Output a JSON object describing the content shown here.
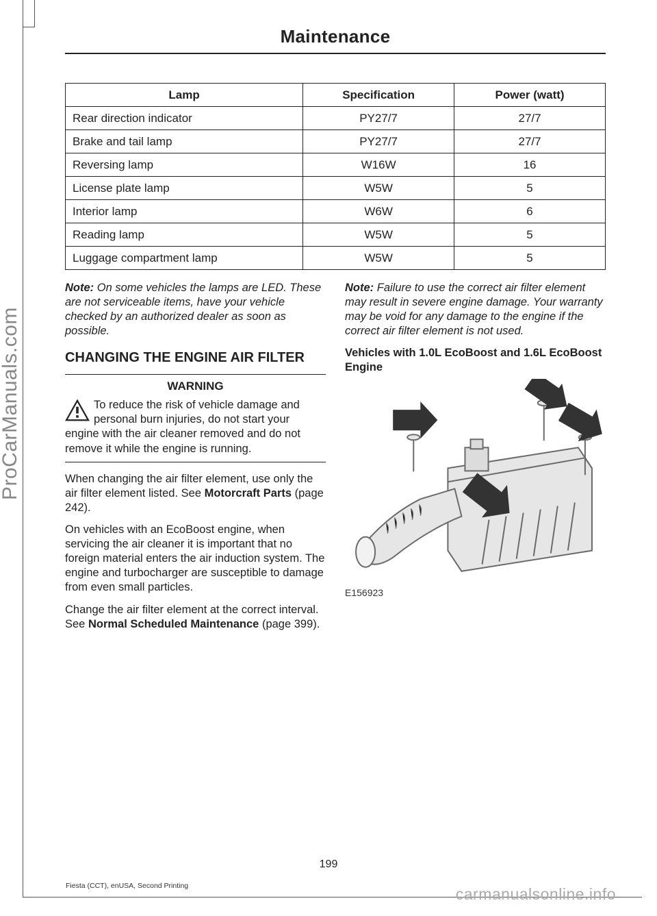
{
  "chapter_title": "Maintenance",
  "table": {
    "columns": [
      "Lamp",
      "Specification",
      "Power (watt)"
    ],
    "rows": [
      [
        "Rear direction indicator",
        "PY27/7",
        "27/7"
      ],
      [
        "Brake and tail lamp",
        "PY27/7",
        "27/7"
      ],
      [
        "Reversing lamp",
        "W16W",
        "16"
      ],
      [
        "License plate lamp",
        "W5W",
        "5"
      ],
      [
        "Interior lamp",
        "W6W",
        "6"
      ],
      [
        "Reading lamp",
        "W5W",
        "5"
      ],
      [
        "Luggage compartment lamp",
        "W5W",
        "5"
      ]
    ]
  },
  "left_col": {
    "note_label": "Note:",
    "note_text": " On some vehicles the lamps are LED. These are not serviceable items, have your vehicle checked by an authorized dealer as soon as possible.",
    "heading": "CHANGING THE ENGINE AIR FILTER",
    "warning_title": "WARNING",
    "warning_body": "To reduce the risk of vehicle damage and personal burn injuries, do not start your engine with the air cleaner removed and do not remove it while the engine is running.",
    "p1a": "When changing the air filter element, use only the air filter element listed.  See ",
    "p1b": "Motorcraft Parts",
    "p1c": " (page 242).",
    "p2": "On vehicles with an EcoBoost engine, when servicing the air cleaner it is important that no foreign material enters the air induction system. The engine and turbocharger are susceptible to damage from even small particles.",
    "p3a": "Change the air filter element at the correct interval.  See ",
    "p3b": "Normal Scheduled Maintenance",
    "p3c": " (page 399)."
  },
  "right_col": {
    "note_label": "Note:",
    "note_text": " Failure to use the correct air filter element may result in severe engine damage. Your warranty may be void for any damage to the engine if the correct air filter element is not used.",
    "heading": "Vehicles with 1.0L EcoBoost and 1.6L EcoBoost Engine",
    "figure_id": "E156923"
  },
  "page_number": "199",
  "footer_meta": "Fiesta (CCT), enUSA, Second Printing",
  "watermark_left": "ProCarManuals.com",
  "watermark_right": "carmanualsonline.info",
  "colors": {
    "text": "#222222",
    "watermark": "#9a9a9a",
    "border": "#222222",
    "figure_stroke": "#6b6b6b",
    "figure_fill": "#e6e6e6",
    "arrow_fill": "#333333"
  }
}
